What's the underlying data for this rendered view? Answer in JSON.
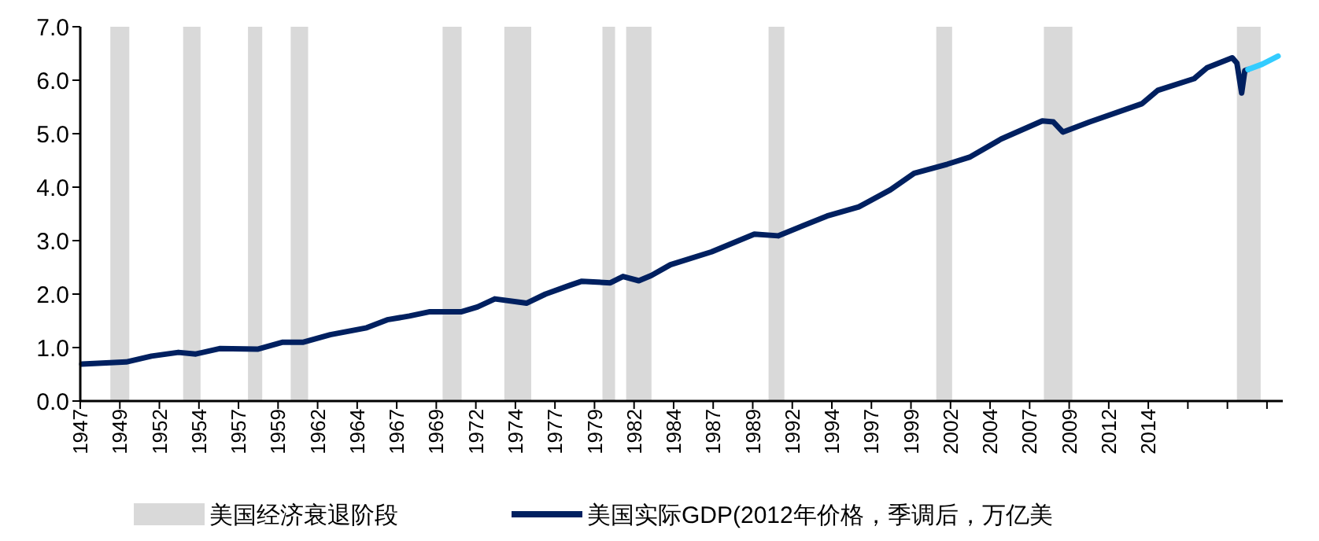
{
  "chart_data": {
    "type": "line",
    "xlim": [
      1947,
      2023
    ],
    "ylim": [
      0,
      7
    ],
    "xticks": [
      1947,
      {
        "value": 1949.5,
        "label": "1949"
      },
      1952,
      {
        "value": 1954.5,
        "label": "1954"
      },
      1957,
      {
        "value": 1959.5,
        "label": "1959"
      },
      1962,
      {
        "value": 1964.5,
        "label": "1964"
      },
      1967,
      {
        "value": 1969.5,
        "label": "1969"
      },
      1972,
      {
        "value": 1974.5,
        "label": "1974"
      },
      1977,
      {
        "value": 1979.5,
        "label": "1979"
      },
      1982,
      {
        "value": 1984.5,
        "label": "1984"
      },
      1987,
      {
        "value": 1989.5,
        "label": "1989"
      },
      1992,
      {
        "value": 1994.5,
        "label": "1994"
      },
      1997,
      {
        "value": 1999.5,
        "label": "1999"
      },
      2002,
      {
        "value": 2004.5,
        "label": "2004"
      },
      2007,
      {
        "value": 2009.5,
        "label": "2009"
      },
      2012,
      {
        "value": 2014.5,
        "label": "2014"
      },
      {
        "value": 2017,
        "label": null
      },
      {
        "value": 2019.5,
        "label": null
      },
      {
        "value": 2022,
        "label": null
      }
    ],
    "yticks": [
      {
        "value": 0,
        "label": "0.0"
      },
      {
        "value": 1,
        "label": "1.0"
      },
      {
        "value": 2,
        "label": "2.0"
      },
      {
        "value": 3,
        "label": "3.0"
      },
      {
        "value": 4,
        "label": "4.0"
      },
      {
        "value": 5,
        "label": "5.0"
      },
      {
        "value": 6,
        "label": "6.0"
      },
      {
        "value": 7,
        "label": "7.0"
      }
    ],
    "grid": false,
    "legend": "bottom",
    "line_style": "solid",
    "marker": "none",
    "bands": [
      {
        "axis": "x",
        "from": 1948.9,
        "to": 1950.1,
        "label": "美国经济衰退阶段",
        "color": "#d9d9d9"
      },
      {
        "axis": "x",
        "from": 1953.5,
        "to": 1954.6,
        "color": "#d9d9d9"
      },
      {
        "axis": "x",
        "from": 1957.6,
        "to": 1958.5,
        "color": "#d9d9d9"
      },
      {
        "axis": "x",
        "from": 1960.3,
        "to": 1961.4,
        "color": "#d9d9d9"
      },
      {
        "axis": "x",
        "from": 1969.9,
        "to": 1971.1,
        "color": "#d9d9d9"
      },
      {
        "axis": "x",
        "from": 1973.8,
        "to": 1975.5,
        "color": "#d9d9d9"
      },
      {
        "axis": "x",
        "from": 1980.0,
        "to": 1980.8,
        "color": "#d9d9d9"
      },
      {
        "axis": "x",
        "from": 1981.5,
        "to": 1983.1,
        "color": "#d9d9d9"
      },
      {
        "axis": "x",
        "from": 1990.5,
        "to": 1991.5,
        "color": "#d9d9d9"
      },
      {
        "axis": "x",
        "from": 2001.1,
        "to": 2002.1,
        "color": "#d9d9d9"
      },
      {
        "axis": "x",
        "from": 2007.9,
        "to": 2009.7,
        "color": "#d9d9d9"
      },
      {
        "axis": "x",
        "from": 2020.1,
        "to": 2021.6,
        "color": "#d9d9d9"
      }
    ],
    "series": [
      {
        "name": "美国实际GDP(2012年价格，季调后，万亿美",
        "color": "#002060",
        "x": [
          1947.1,
          1949.9,
          1951.5,
          1953.2,
          1954.3,
          1955.8,
          1958.2,
          1959.8,
          1961.1,
          1962.8,
          1965.1,
          1966.4,
          1967.8,
          1969.1,
          1971.1,
          1972.1,
          1973.2,
          1975.2,
          1976.4,
          1977.9,
          1978.7,
          1980.5,
          1981.3,
          1982.3,
          1983.1,
          1984.3,
          1986.9,
          1989.6,
          1991.1,
          1994.2,
          1996.2,
          1998.2,
          1999.7,
          2001.8,
          2003.2,
          2005.2,
          2007.8,
          2008.5,
          2009.1,
          2010.8,
          2014.1,
          2015.1,
          2017.4,
          2018.2,
          2019.8,
          2020.1,
          2020.4,
          2020.6,
          2020.8
        ],
        "values": [
          0.69,
          0.73,
          0.84,
          0.91,
          0.88,
          0.98,
          0.97,
          1.1,
          1.1,
          1.24,
          1.37,
          1.52,
          1.59,
          1.67,
          1.67,
          1.76,
          1.91,
          1.83,
          2.0,
          2.16,
          2.24,
          2.21,
          2.33,
          2.25,
          2.35,
          2.55,
          2.79,
          3.12,
          3.09,
          3.46,
          3.63,
          3.95,
          4.26,
          4.43,
          4.56,
          4.9,
          5.24,
          5.22,
          5.03,
          5.22,
          5.56,
          5.81,
          6.03,
          6.23,
          6.42,
          6.32,
          5.76,
          6.18,
          6.2
        ]
      },
      {
        "color": "#33ccff",
        "x": [
          2020.8,
          2021.7,
          2022.7
        ],
        "values": [
          6.2,
          6.3,
          6.45
        ]
      }
    ]
  }
}
